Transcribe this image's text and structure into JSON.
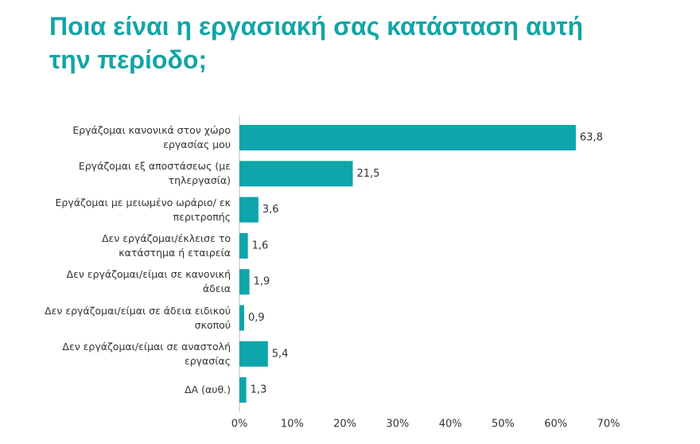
{
  "chart_data": {
    "type": "barh",
    "title": "Ποια είναι η εργασιακή σας κατάσταση αυτή την περίοδο;",
    "categories": [
      "Εργάζομαι κανονικά στον χώρο εργασίας μου",
      "Εργάζομαι εξ αποστάσεως (με τηλεργασία)",
      "Εργάζομαι με μειωμένο ωράριο/ εκ περιτροπής",
      "Δεν εργάζομαι/έκλεισε το κατάστημα ή εταιρεία",
      "Δεν εργάζομαι/είμαι σε κανονική άδεια",
      "Δεν εργάζομαι/είμαι σε άδεια ειδικού σκοπού",
      "Δεν εργάζομαι/είμαι σε αναστολή εργασίας",
      "ΔΑ (αυθ.)"
    ],
    "values": [
      63.8,
      21.5,
      3.6,
      1.6,
      1.9,
      0.9,
      5.4,
      1.3
    ],
    "value_labels": [
      "63,8",
      "21,5",
      "3,6",
      "1,6",
      "1,9",
      "0,9",
      "5,4",
      "1,3"
    ],
    "color": "#0ea5ab",
    "xlim": [
      0,
      70
    ],
    "xticks": [
      {
        "value": 0,
        "label": "0%"
      },
      {
        "value": 10,
        "label": "10%"
      },
      {
        "value": 20,
        "label": "20%"
      },
      {
        "value": 30,
        "label": "30%"
      },
      {
        "value": 40,
        "label": "40%"
      },
      {
        "value": 50,
        "label": "50%"
      },
      {
        "value": 60,
        "label": "60%"
      },
      {
        "value": 70,
        "label": "70%"
      }
    ]
  }
}
